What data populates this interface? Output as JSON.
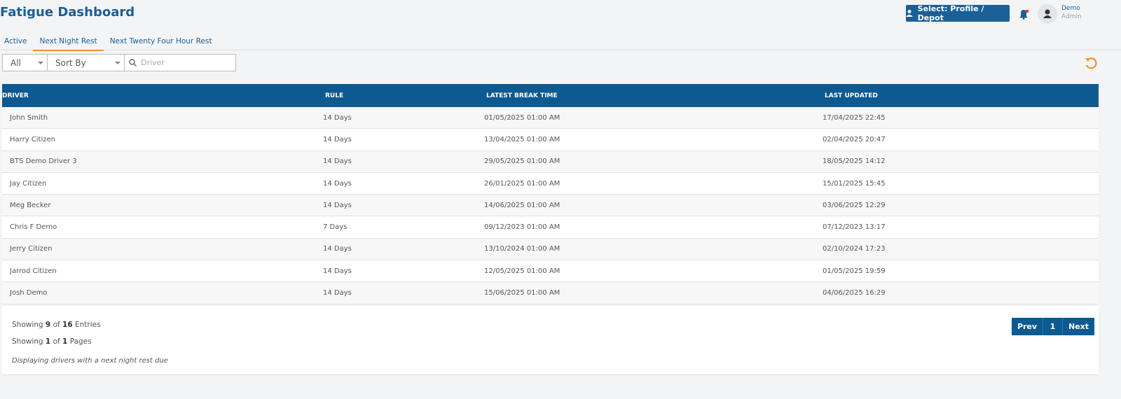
{
  "header": {
    "title": "Fatigue Dashboard",
    "profile_button": "Select: Profile / Depot",
    "user_name": "Demo",
    "user_role": "Admin"
  },
  "tabs": {
    "items": [
      "Active",
      "Next Night Rest",
      "Next Twenty Four Hour Rest"
    ],
    "active": 1
  },
  "filters": {
    "status": "All",
    "sort": "Sort By",
    "search_placeholder": "Driver"
  },
  "table": {
    "columns": [
      "DRIVER",
      "RULE",
      "LATEST BREAK TIME",
      "LAST UPDATED"
    ],
    "rows": [
      [
        "John Smith",
        "14 Days",
        "01/05/2025 01:00 AM",
        "17/04/2025 22:45"
      ],
      [
        "Harry Citizen",
        "14 Days",
        "13/04/2025 01:00 AM",
        "02/04/2025 20:47"
      ],
      [
        "BTS Demo Driver 3",
        "14 Days",
        "29/05/2025 01:00 AM",
        "18/05/2025 14:12"
      ],
      [
        "Jay Citizen",
        "14 Days",
        "26/01/2025 01:00 AM",
        "15/01/2025 15:45"
      ],
      [
        "Meg Becker",
        "14 Days",
        "14/06/2025 01:00 AM",
        "03/06/2025 12:29"
      ],
      [
        "Chris F Demo",
        "7 Days",
        "09/12/2023 01:00 AM",
        "07/12/2023 13:17"
      ],
      [
        "Jerry Citizen",
        "14 Days",
        "13/10/2024 01:00 AM",
        "02/10/2024 17:23"
      ],
      [
        "Jarrod Citizen",
        "14 Days",
        "12/05/2025 01:00 AM",
        "01/05/2025 19:59"
      ],
      [
        "Josh Demo",
        "14 Days",
        "15/06/2025 01:00 AM",
        "04/06/2025 16:29"
      ]
    ]
  },
  "footer": {
    "entries": {
      "label": "Showing",
      "shown": 9,
      "of": "of",
      "total": 16,
      "unit": "Entries"
    },
    "pages": {
      "label": "Showing",
      "shown": 1,
      "of": "of",
      "total": 1,
      "unit": "Pages"
    },
    "note": "Displaying drivers with a next night rest due"
  },
  "pagination": {
    "prev": "Prev",
    "page": 1,
    "next": "Next"
  }
}
